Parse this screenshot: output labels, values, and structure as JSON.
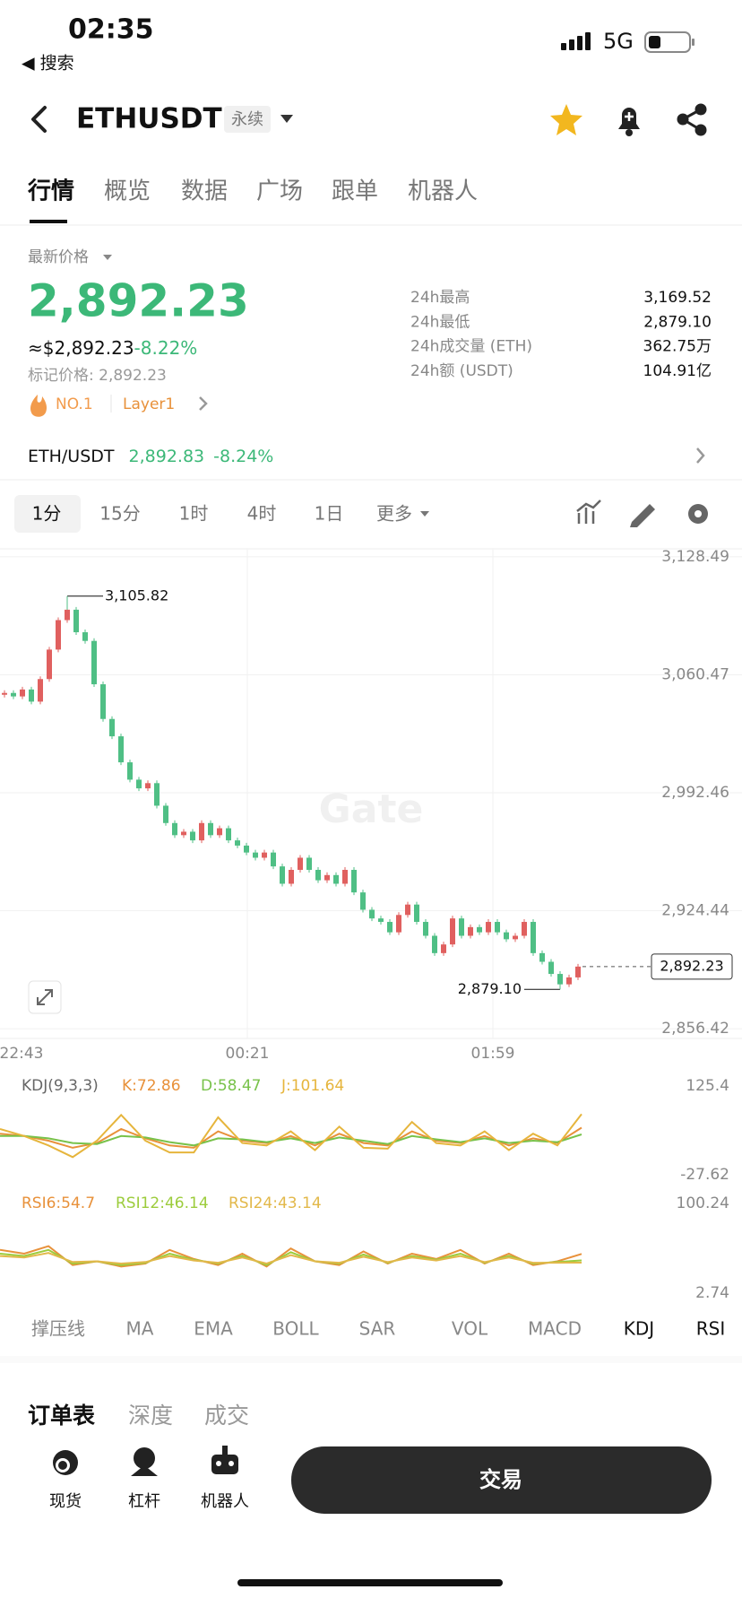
{
  "status": {
    "time": "02:35",
    "back_app": "◀ 搜索",
    "network": "5G"
  },
  "header": {
    "symbol": "ETHUSDT",
    "contract": "永续"
  },
  "tabs": [
    "行情",
    "概览",
    "数据",
    "广场",
    "跟单",
    "机器人"
  ],
  "price": {
    "label": "最新价格",
    "last": "2,892.23",
    "usd": "≈$2,892.23",
    "change": "-8.22%",
    "mark": "标记价格: 2,892.23",
    "rank": "NO.1",
    "tag": "Layer1"
  },
  "stats": [
    [
      "24h最高",
      "3,169.52"
    ],
    [
      "24h最低",
      "2,879.10"
    ],
    [
      "24h成交量 (ETH)",
      "362.75万"
    ],
    [
      "24h额 (USDT)",
      "104.91亿"
    ]
  ],
  "spot": {
    "pair": "ETH/USDT",
    "price": "2,892.83",
    "change": "-8.24%"
  },
  "timeframes": [
    "1分",
    "15分",
    "1时",
    "4时",
    "1日",
    "更多"
  ],
  "chart": {
    "type": "candlestick",
    "watermark": "Gate",
    "up_color": "#e0605f",
    "down_color": "#4fbf85",
    "xlabels": [
      "22:43",
      "00:21",
      "01:59"
    ],
    "ylim": [
      2850.8,
      3133.1
    ],
    "yticks": [
      {
        "value": 3128.49,
        "label": "3,128.49"
      },
      {
        "value": 3060.47,
        "label": "3,060.47"
      },
      {
        "value": 2992.46,
        "label": "2,992.46"
      },
      {
        "value": 2924.44,
        "label": "2,924.44"
      },
      {
        "value": 2856.42,
        "label": "2,856.42"
      }
    ],
    "closes": [
      3050,
      3048,
      3052,
      3045,
      3058,
      3075,
      3092,
      3098,
      3085,
      3080,
      3055,
      3035,
      3025,
      3010,
      3000,
      2995,
      2998,
      2985,
      2975,
      2968,
      2970,
      2965,
      2975,
      2968,
      2972,
      2965,
      2962,
      2958,
      2955,
      2958,
      2950,
      2940,
      2948,
      2955,
      2948,
      2942,
      2945,
      2940,
      2948,
      2935,
      2925,
      2920,
      2918,
      2912,
      2922,
      2928,
      2918,
      2910,
      2900,
      2905,
      2920,
      2910,
      2915,
      2912,
      2918,
      2912,
      2908,
      2910,
      2918,
      2900,
      2895,
      2888,
      2882,
      2886,
      2892.23
    ],
    "high": {
      "value": 3105.82,
      "label": "3,105.82"
    },
    "low": {
      "value": 2879.1,
      "label": "2,879.10"
    },
    "last": {
      "value": 2892.23,
      "label": "2,892.23"
    }
  },
  "indicators": [
    {
      "title": "KDJ(9,3,3)",
      "ylim": [
        -27.62,
        125.4
      ],
      "yticks": [
        125.4,
        -27.62
      ],
      "series": [
        {
          "name": "K:72.86",
          "color": "#e8913a",
          "values": [
            60,
            55,
            45,
            30,
            40,
            70,
            50,
            35,
            30,
            65,
            45,
            40,
            55,
            35,
            60,
            40,
            35,
            65,
            45,
            40,
            55,
            35,
            50,
            40,
            72.86
          ]
        },
        {
          "name": "D:58.47",
          "color": "#78c24a",
          "values": [
            55,
            55,
            50,
            40,
            38,
            55,
            52,
            42,
            35,
            50,
            48,
            42,
            50,
            40,
            52,
            45,
            38,
            55,
            48,
            42,
            50,
            40,
            45,
            42,
            58.47
          ]
        },
        {
          "name": "J:101.64",
          "color": "#e6b53c",
          "values": [
            70,
            55,
            35,
            10,
            45,
            100,
            45,
            20,
            20,
            95,
            40,
            35,
            65,
            25,
            75,
            30,
            28,
            85,
            40,
            35,
            65,
            25,
            60,
            35,
            101.64
          ]
        }
      ]
    },
    {
      "title": null,
      "ylim": [
        2.74,
        100.24
      ],
      "yticks": [
        100.24,
        2.74
      ],
      "series": [
        {
          "name": "RSI6:54.7",
          "color": "#e8913a",
          "values": [
            60,
            55,
            65,
            40,
            45,
            38,
            42,
            60,
            48,
            40,
            55,
            38,
            62,
            45,
            40,
            58,
            42,
            55,
            48,
            60,
            42,
            55,
            40,
            45,
            54.7
          ]
        },
        {
          "name": "RSI12:46.14",
          "color": "#9ccc3c",
          "values": [
            55,
            52,
            60,
            42,
            45,
            40,
            43,
            55,
            47,
            42,
            52,
            40,
            57,
            45,
            42,
            54,
            43,
            52,
            47,
            55,
            43,
            52,
            42,
            44,
            46.14
          ]
        },
        {
          "name": "RSI24:43.14",
          "color": "#e2b84a",
          "values": [
            52,
            50,
            56,
            44,
            45,
            42,
            44,
            52,
            46,
            43,
            50,
            42,
            53,
            45,
            43,
            51,
            44,
            50,
            46,
            52,
            44,
            50,
            43,
            43,
            43.14
          ]
        }
      ]
    }
  ],
  "indicator_tabs": [
    "撑压线",
    "MA",
    "EMA",
    "BOLL",
    "SAR",
    "VOL",
    "MACD",
    "KDJ",
    "RSI"
  ],
  "indicator_active": [
    7,
    8
  ],
  "order_tabs": [
    "订单表",
    "深度",
    "成交"
  ],
  "nav": [
    "现货",
    "杠杆",
    "机器人"
  ],
  "trade": "交易"
}
